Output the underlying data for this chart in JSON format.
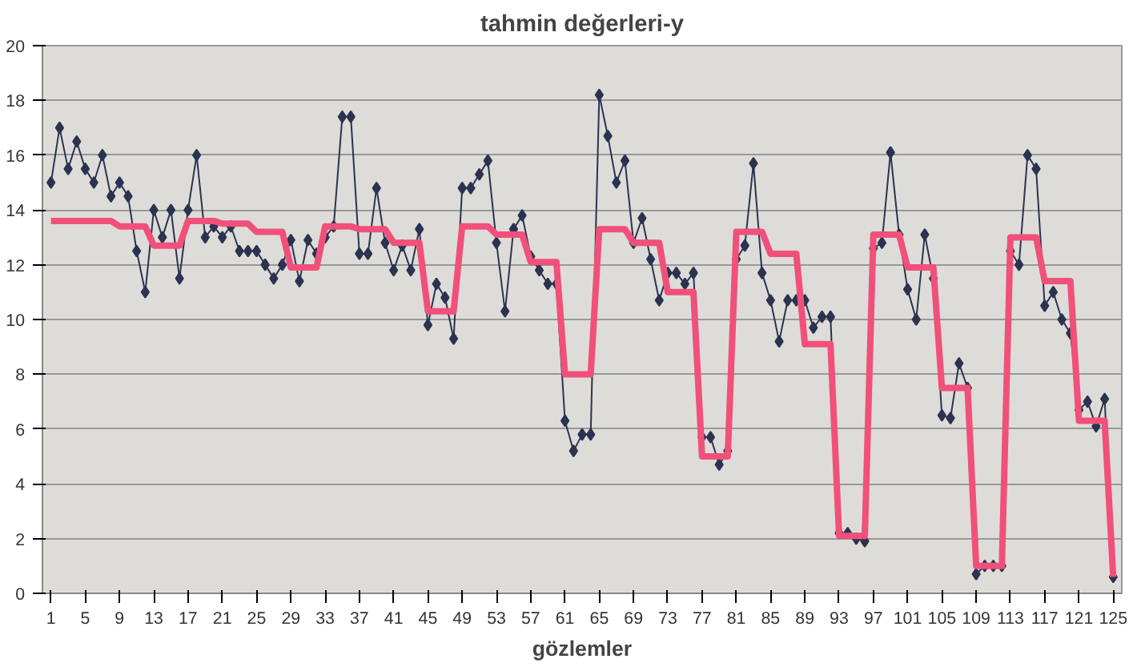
{
  "chart_data": {
    "type": "line",
    "title": "tahmin değerleri-y",
    "xlabel": "gözlemler",
    "x": [
      1,
      2,
      3,
      4,
      5,
      6,
      7,
      8,
      9,
      10,
      11,
      12,
      13,
      14,
      15,
      16,
      17,
      18,
      19,
      20,
      21,
      22,
      23,
      24,
      25,
      26,
      27,
      28,
      29,
      30,
      31,
      32,
      33,
      34,
      35,
      36,
      37,
      38,
      39,
      40,
      41,
      42,
      43,
      44,
      45,
      46,
      47,
      48,
      49,
      50,
      51,
      52,
      53,
      54,
      55,
      56,
      57,
      58,
      59,
      60,
      61,
      62,
      63,
      64,
      65,
      66,
      67,
      68,
      69,
      70,
      71,
      72,
      73,
      74,
      75,
      76,
      77,
      78,
      79,
      80,
      81,
      82,
      83,
      84,
      85,
      86,
      87,
      88,
      89,
      90,
      91,
      92,
      93,
      94,
      95,
      96,
      97,
      98,
      99,
      100,
      101,
      102,
      103,
      104,
      105,
      106,
      107,
      108,
      109,
      110,
      111,
      112,
      113,
      114,
      115,
      116,
      117,
      118,
      119,
      120,
      121,
      122,
      123,
      124,
      125
    ],
    "series": [
      {
        "color": "#2b3350",
        "marker": "diamond",
        "values": [
          15.0,
          17.0,
          15.5,
          16.5,
          15.5,
          15.0,
          16.0,
          14.5,
          15.0,
          14.5,
          12.5,
          11.0,
          14.0,
          13.0,
          14.0,
          11.5,
          14.0,
          16.0,
          13.0,
          13.4,
          13.0,
          13.4,
          12.5,
          12.5,
          12.5,
          12.0,
          11.5,
          12.0,
          12.9,
          11.4,
          12.9,
          12.4,
          13.0,
          13.4,
          17.4,
          17.4,
          12.4,
          12.4,
          14.8,
          12.8,
          11.8,
          12.7,
          11.8,
          13.3,
          9.8,
          11.3,
          10.8,
          9.3,
          14.8,
          14.8,
          15.3,
          15.8,
          12.8,
          10.3,
          13.3,
          13.8,
          12.3,
          11.8,
          11.3,
          11.3,
          6.3,
          5.2,
          5.8,
          5.8,
          18.2,
          16.7,
          15.0,
          15.8,
          12.8,
          13.7,
          12.2,
          10.7,
          11.7,
          11.7,
          11.3,
          11.7,
          5.7,
          5.7,
          4.7,
          5.2,
          12.2,
          12.7,
          15.7,
          11.7,
          10.7,
          9.2,
          10.7,
          10.7,
          10.7,
          9.7,
          10.1,
          10.1,
          2.2,
          2.2,
          2.0,
          1.9,
          12.6,
          12.8,
          16.1,
          13.1,
          11.1,
          10.0,
          13.1,
          11.5,
          6.5,
          6.4,
          8.4,
          7.5,
          0.7,
          1.0,
          1.0,
          1.0,
          12.5,
          12.0,
          16.0,
          15.5,
          10.5,
          11.0,
          10.0,
          9.5,
          6.7,
          7.0,
          6.1,
          7.1,
          0.6
        ]
      },
      {
        "color": "#f0507a",
        "marker": "none",
        "values": [
          13.6,
          13.6,
          13.6,
          13.6,
          13.6,
          13.6,
          13.6,
          13.6,
          13.4,
          13.4,
          13.4,
          13.4,
          12.7,
          12.7,
          12.7,
          12.7,
          13.6,
          13.6,
          13.6,
          13.6,
          13.5,
          13.5,
          13.5,
          13.5,
          13.2,
          13.2,
          13.2,
          13.2,
          11.9,
          11.9,
          11.9,
          11.9,
          13.4,
          13.4,
          13.4,
          13.4,
          13.3,
          13.3,
          13.3,
          13.3,
          12.8,
          12.8,
          12.8,
          12.8,
          10.3,
          10.3,
          10.3,
          10.3,
          13.4,
          13.4,
          13.4,
          13.4,
          13.1,
          13.1,
          13.1,
          13.1,
          12.1,
          12.1,
          12.1,
          12.1,
          8.0,
          8.0,
          8.0,
          8.0,
          13.3,
          13.3,
          13.3,
          13.3,
          12.8,
          12.8,
          12.8,
          12.8,
          11.0,
          11.0,
          11.0,
          11.0,
          5.0,
          5.0,
          5.0,
          5.0,
          13.2,
          13.2,
          13.2,
          13.2,
          12.4,
          12.4,
          12.4,
          12.4,
          9.1,
          9.1,
          9.1,
          9.1,
          2.1,
          2.1,
          2.1,
          2.1,
          13.1,
          13.1,
          13.1,
          13.1,
          11.9,
          11.9,
          11.9,
          11.9,
          7.5,
          7.5,
          7.5,
          7.5,
          1.0,
          1.0,
          1.0,
          1.0,
          13.0,
          13.0,
          13.0,
          13.0,
          11.4,
          11.4,
          11.4,
          11.4,
          6.3,
          6.3,
          6.3,
          6.3,
          0.6
        ]
      }
    ],
    "xlim": [
      0,
      126
    ],
    "xticks": [
      1,
      5,
      9,
      13,
      17,
      21,
      25,
      29,
      33,
      37,
      41,
      45,
      49,
      53,
      57,
      61,
      65,
      69,
      73,
      77,
      81,
      85,
      89,
      93,
      97,
      101,
      105,
      109,
      113,
      117,
      121,
      125
    ],
    "ylim": [
      0,
      20
    ],
    "yticks": [
      0,
      2,
      4,
      6,
      8,
      10,
      12,
      14,
      16,
      18,
      20
    ],
    "grid": "y"
  }
}
